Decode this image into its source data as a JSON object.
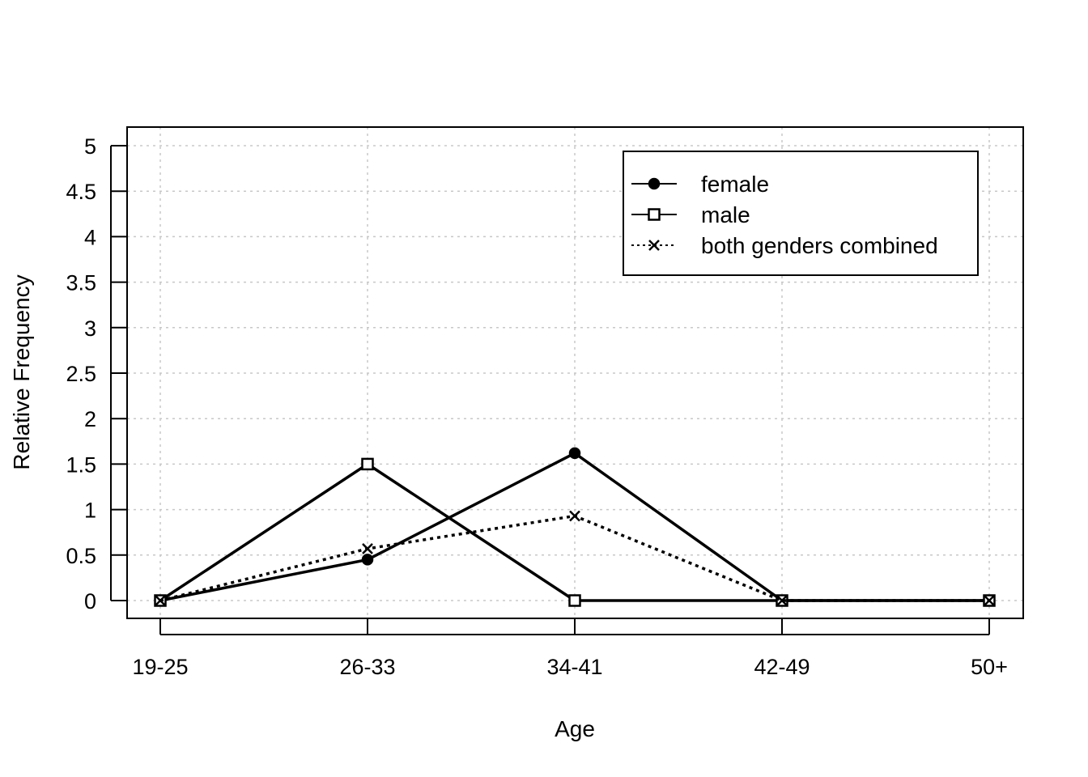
{
  "chart_data": {
    "type": "line",
    "categories": [
      "19-25",
      "26-33",
      "34-41",
      "42-49",
      "50+"
    ],
    "xlabel": "Age",
    "ylabel": "Relative Frequency",
    "ylim": [
      0,
      5
    ],
    "yticks": [
      0,
      0.5,
      1,
      1.5,
      2,
      2.5,
      3,
      3.5,
      4,
      4.5,
      5
    ],
    "ytick_labels": [
      "0",
      "0.5",
      "1",
      "1.5",
      "2",
      "2.5",
      "3",
      "3.5",
      "4",
      "4.5",
      "5"
    ],
    "grid": true,
    "legend_position": "top-right",
    "series": [
      {
        "name": "female",
        "values": [
          0,
          0.45,
          1.62,
          0,
          0
        ],
        "marker": "filled-circle",
        "line_style": "solid"
      },
      {
        "name": "male",
        "values": [
          0,
          1.5,
          0,
          0,
          0
        ],
        "marker": "open-square",
        "line_style": "solid"
      },
      {
        "name": "both genders combined",
        "values": [
          0,
          0.57,
          0.93,
          0,
          0
        ],
        "marker": "cross",
        "line_style": "dotted"
      }
    ]
  }
}
